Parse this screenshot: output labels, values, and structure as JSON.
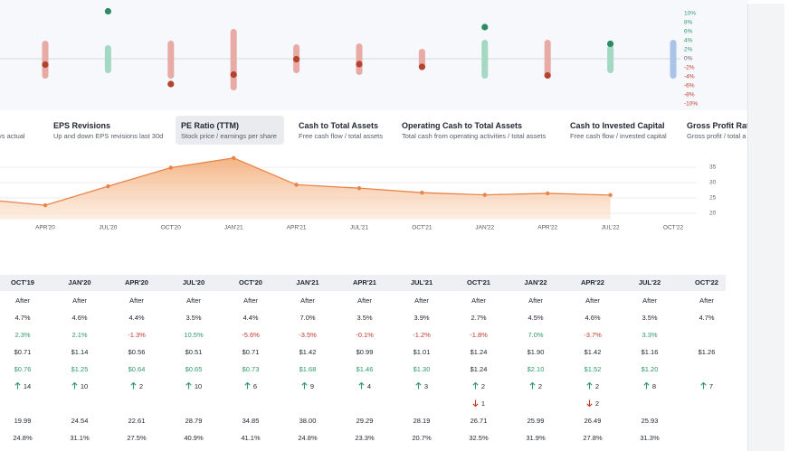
{
  "strip": {
    "ylim": [
      -10,
      10
    ],
    "yticks": [
      {
        "value": 10,
        "label": "10%"
      },
      {
        "value": 8,
        "label": "8%"
      },
      {
        "value": 6,
        "label": "6%"
      },
      {
        "value": 4,
        "label": "4%"
      },
      {
        "value": 2,
        "label": "2%"
      },
      {
        "value": 0,
        "label": "0%"
      },
      {
        "value": -2,
        "label": "-2%"
      },
      {
        "value": -4,
        "label": "-4%"
      },
      {
        "value": -6,
        "label": "-6%"
      },
      {
        "value": -8,
        "label": "-8%"
      },
      {
        "value": -10,
        "label": "-10%"
      }
    ],
    "highs": [
      4,
      3,
      4,
      6.6,
      3.2,
      3.4,
      2.2,
      4.2,
      4.2,
      3,
      4.2
    ],
    "lows": [
      -4.4,
      -3.2,
      -4.4,
      -7,
      -3.2,
      -3.6,
      -2.4,
      -4.4,
      -4.4,
      -3.2,
      -4.4
    ],
    "values": [
      -1.3,
      10.5,
      -5.6,
      -3.5,
      -0.1,
      -1.2,
      -1.8,
      7.0,
      -3.7,
      3.3,
      null
    ],
    "bar_colors": [
      "#e8aaa4",
      "#a3d8c3",
      "#e8aaa4",
      "#e8aaa4",
      "#e8aaa4",
      "#e8aaa4",
      "#e8aaa4",
      "#a3d8c3",
      "#e8aaa4",
      "#a3d8c3",
      "#a9c4e8"
    ],
    "dot_colors": [
      "#b3432e",
      "#2e8b63",
      "#b3432e",
      "#b3432e",
      "#b3432e",
      "#b3432e",
      "#b3432e",
      "#2e8b63",
      "#b3432e",
      "#2e8b63",
      null
    ]
  },
  "tabs": [
    {
      "title": null,
      "subtitle": "vs actual"
    },
    {
      "title": "EPS Revisions",
      "subtitle": "Up and down EPS revisions last 30d"
    },
    {
      "title": "PE Ratio (TTM)",
      "subtitle": "Stock price / earnings per share"
    },
    {
      "title": "Cash to Total Assets",
      "subtitle": "Free cash flow / total assets"
    },
    {
      "title": "Operating Cash to Total Assets",
      "subtitle": "Total cash from operating activities / total assets"
    },
    {
      "title": "Cash to Invested Capital",
      "subtitle": "Free cash flow / invested capital"
    },
    {
      "title": "Gross Profit Ratio",
      "subtitle": "Gross profit / total a"
    }
  ],
  "chart_data": {
    "type": "area",
    "categories": [
      null,
      "APR'20",
      "JUL'20",
      "OCT'20",
      "JAN'21",
      "APR'21",
      "JUL'21",
      "OCT'21",
      "JAN'22",
      "APR'22",
      "JUL'22",
      "OCT'22"
    ],
    "values": [
      24.54,
      22.61,
      28.79,
      34.85,
      38.0,
      29.29,
      28.19,
      26.71,
      25.99,
      26.49,
      25.93,
      null
    ],
    "color": "#e8844a",
    "ylim": [
      18,
      40
    ],
    "yticks": [
      20,
      25,
      30,
      35
    ]
  },
  "table": {
    "columns": [
      "OCT'19",
      "JAN'20",
      "APR'20",
      "JUL'20",
      "OCT'20",
      "JAN'21",
      "APR'21",
      "JUL'21",
      "OCT'21",
      "JAN'22",
      "APR'22",
      "JUL'22",
      "OCT'22"
    ],
    "rows": [
      [
        "After",
        "After",
        "After",
        "After",
        "After",
        "After",
        "After",
        "After",
        "After",
        "After",
        "After",
        "After",
        "After"
      ],
      [
        "4.7%",
        "4.6%",
        "4.4%",
        "3.5%",
        "4.4%",
        "7.0%",
        "3.5%",
        "3.9%",
        "2.7%",
        "4.5%",
        "4.6%",
        "3.5%",
        "4.7%"
      ],
      [
        "2.3%",
        "2.1%",
        "-1.3%",
        "10.5%",
        "-5.6%",
        "-3.5%",
        "-0.1%",
        "-1.2%",
        "-1.8%",
        "7.0%",
        "-3.7%",
        "3.3%",
        null
      ],
      [
        "$0.71",
        "$1.14",
        "$0.56",
        "$0.51",
        "$0.71",
        "$1.42",
        "$0.99",
        "$1.01",
        "$1.24",
        "$1.90",
        "$1.42",
        "$1.16",
        "$1.26"
      ],
      [
        "$0.76",
        "$1.25",
        "$0.64",
        "$0.65",
        "$0.73",
        "$1.68",
        "$1.46",
        "$1.30",
        "$1.24",
        "$2.10",
        "$1.52",
        "$1.20",
        null
      ],
      [
        "14",
        "10",
        "2",
        "10",
        "6",
        "9",
        "4",
        "3",
        "2",
        "2",
        "2",
        "8",
        "7"
      ],
      [
        null,
        null,
        null,
        null,
        null,
        null,
        null,
        null,
        "1",
        null,
        "2",
        null,
        null
      ],
      [
        "19.99",
        "24.54",
        "22.61",
        "28.79",
        "34.85",
        "38.00",
        "29.29",
        "28.19",
        "26.71",
        "25.99",
        "26.49",
        "25.93",
        null
      ],
      [
        "24.8%",
        "31.1%",
        "27.5%",
        "40.9%",
        "41.1%",
        "24.8%",
        "23.3%",
        "20.7%",
        "32.5%",
        "31.9%",
        "27.8%",
        "31.3%",
        null
      ]
    ]
  }
}
